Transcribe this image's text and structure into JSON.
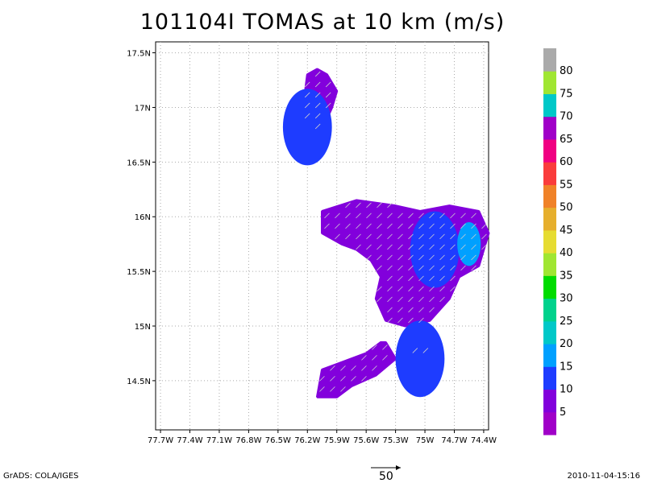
{
  "title": "101104I TOMAS at 10 km (m/s)",
  "footer": {
    "left": "GrADS: COLA/IGES",
    "right": "2010-11-04-15:16",
    "ref_vector_label": "50"
  },
  "chart_data": {
    "type": "heatmap",
    "title": "101104I TOMAS at 10 km (m/s)",
    "x_axis": {
      "ticks": [
        -77.7,
        -77.4,
        -77.1,
        -76.8,
        -76.5,
        -76.2,
        -75.9,
        -75.6,
        -75.3,
        -75.0,
        -74.7,
        -74.4
      ],
      "tick_labels": [
        "77.7W",
        "77.4W",
        "77.1W",
        "76.8W",
        "76.5W",
        "76.2W",
        "75.9W",
        "75.6W",
        "75.3W",
        "75W",
        "74.7W",
        "74.4W"
      ],
      "range": [
        -77.75,
        -74.35
      ]
    },
    "y_axis": {
      "ticks": [
        14.5,
        15.0,
        15.5,
        16.0,
        16.5,
        17.0,
        17.5
      ],
      "tick_labels": [
        "14.5N",
        "15N",
        "15.5N",
        "16N",
        "16.5N",
        "17N",
        "17.5N"
      ],
      "range": [
        14.05,
        17.6
      ]
    },
    "grid": true,
    "colorbar": {
      "labels": [
        "5",
        "10",
        "15",
        "20",
        "25",
        "30",
        "35",
        "40",
        "45",
        "50",
        "55",
        "60",
        "65",
        "70",
        "75",
        "80"
      ],
      "colors": [
        "#a000c8",
        "#8200dc",
        "#1e3cff",
        "#00a0ff",
        "#00c8c8",
        "#00d28c",
        "#00dc00",
        "#a0e632",
        "#e6dc32",
        "#e6af2d",
        "#f08228",
        "#fa3c3c",
        "#f00082",
        "#a000c8",
        "#00c8c8",
        "#a0e632",
        "#aaaaaa"
      ]
    },
    "wind_field": [
      {
        "region": "north-island",
        "lon": [
          -76.2,
          -76.1,
          -76.0,
          -75.9,
          -75.95,
          -76.0,
          -76.05,
          -76.1,
          -76.15,
          -76.25
        ],
        "lat": [
          17.3,
          17.35,
          17.3,
          17.15,
          17.0,
          16.9,
          16.75,
          16.72,
          16.8,
          16.95
        ],
        "speed": 6,
        "core": {
          "lon": -76.2,
          "lat": 16.82,
          "speed": 11
        }
      },
      {
        "region": "main",
        "lon": [
          -76.05,
          -75.7,
          -75.3,
          -75.05,
          -74.75,
          -74.45,
          -74.35,
          -74.45,
          -74.65,
          -74.75,
          -74.95,
          -75.2,
          -75.4,
          -75.5,
          -75.45,
          -75.55,
          -75.7,
          -75.85,
          -76.05
        ],
        "lat": [
          16.05,
          16.15,
          16.1,
          16.05,
          16.1,
          16.05,
          15.85,
          15.55,
          15.45,
          15.25,
          15.05,
          15.0,
          15.05,
          15.25,
          15.45,
          15.6,
          15.7,
          15.75,
          15.85
        ],
        "speed": 7,
        "core": {
          "lon": -74.9,
          "lat": 15.7,
          "speed": 13
        },
        "max": {
          "lon": -74.55,
          "lat": 15.75,
          "speed": 19
        }
      },
      {
        "region": "south-island",
        "lon": [
          -75.4,
          -75.3,
          -75.5,
          -75.75,
          -75.9,
          -76.1,
          -76.05,
          -75.9,
          -75.6,
          -75.45
        ],
        "lat": [
          14.85,
          14.7,
          14.55,
          14.45,
          14.35,
          14.35,
          14.6,
          14.65,
          14.75,
          14.85
        ],
        "speed": 6
      },
      {
        "region": "small-island",
        "lon": [
          -75.15,
          -74.95,
          -74.95,
          -75.15
        ],
        "lat": [
          14.82,
          14.82,
          14.7,
          14.7
        ],
        "speed": 8,
        "core": {
          "lon": -75.05,
          "lat": 14.7,
          "speed": 12
        }
      }
    ]
  }
}
